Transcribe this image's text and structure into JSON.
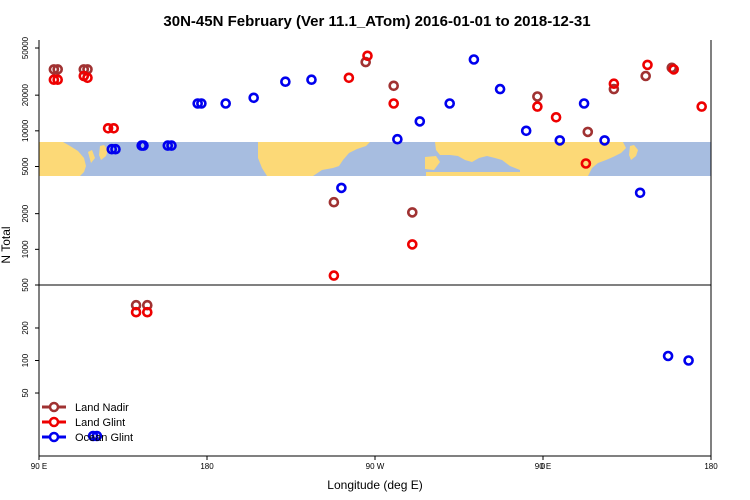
{
  "chart_data": {
    "type": "scatter",
    "title": "30N-45N February (Ver 11.1_ATom)   2016-01-01 to 2018-12-31",
    "xlabel": "Longitude (deg E)",
    "ylabel": "N Total",
    "x_tick_labels": [
      "90 E",
      "180",
      "90 W",
      "0",
      "90 E",
      "180"
    ],
    "y_tick_labels": [
      "50000",
      "20000",
      "10000",
      "5000",
      "2000",
      "1000",
      "500",
      "200",
      "100",
      "50"
    ],
    "x_axis": "longitude, one full wrap starting at 90 E",
    "y_scale": "log",
    "grid": false,
    "legend_position": "bottom-left",
    "colors": {
      "land_nadir": "#a03232",
      "land_glint": "#ee0000",
      "ocean_glint": "#0000ee",
      "map_ocean": "#a7bde0",
      "map_land": "#fcd977"
    },
    "series": [
      {
        "name": "Land Nadir",
        "color": "#a03232",
        "points": [
          {
            "lon": 98,
            "n": 33000
          },
          {
            "lon": 114,
            "n": 33000
          },
          {
            "lon": 142,
            "n": 325
          },
          {
            "lon": -112,
            "n": 2500
          },
          {
            "lon": -95,
            "n": 38000
          },
          {
            "lon": -80,
            "n": 24000
          },
          {
            "lon": -70,
            "n": 2050
          },
          {
            "lon": -3,
            "n": 19500
          },
          {
            "lon": 24,
            "n": 9800
          },
          {
            "lon": 38,
            "n": 22500
          },
          {
            "lon": 55,
            "n": 29000
          },
          {
            "lon": 69,
            "n": 34000
          },
          {
            "lon": 100,
            "n": 33000
          },
          {
            "lon": 116,
            "n": 33000
          },
          {
            "lon": 148,
            "n": 325
          }
        ]
      },
      {
        "name": "Land Glint",
        "color": "#ee0000",
        "points": [
          {
            "lon": 98,
            "n": 27000
          },
          {
            "lon": 114,
            "n": 29000
          },
          {
            "lon": 127,
            "n": 10500
          },
          {
            "lon": 142,
            "n": 280
          },
          {
            "lon": -112,
            "n": 600
          },
          {
            "lon": -104,
            "n": 28000
          },
          {
            "lon": -94,
            "n": 43000
          },
          {
            "lon": -80,
            "n": 17000
          },
          {
            "lon": -70,
            "n": 1100
          },
          {
            "lon": -3,
            "n": 16000
          },
          {
            "lon": 7,
            "n": 13000
          },
          {
            "lon": 23,
            "n": 5300
          },
          {
            "lon": 38,
            "n": 25000
          },
          {
            "lon": 56,
            "n": 36000
          },
          {
            "lon": 70,
            "n": 33000
          },
          {
            "lon": 85,
            "n": 16000
          },
          {
            "lon": 100,
            "n": 27000
          },
          {
            "lon": 116,
            "n": 28000
          },
          {
            "lon": 130,
            "n": 10500
          },
          {
            "lon": 148,
            "n": 280
          }
        ]
      },
      {
        "name": "Ocean Glint",
        "color": "#0000ee",
        "points": [
          {
            "lon": 119,
            "n": 20
          },
          {
            "lon": 129,
            "n": 7000
          },
          {
            "lon": 145,
            "n": 7500
          },
          {
            "lon": 159,
            "n": 7500
          },
          {
            "lon": 175,
            "n": 17000
          },
          {
            "lon": -170,
            "n": 17000
          },
          {
            "lon": -155,
            "n": 19000
          },
          {
            "lon": -138,
            "n": 26000
          },
          {
            "lon": -124,
            "n": 27000
          },
          {
            "lon": -108,
            "n": 3300
          },
          {
            "lon": -78,
            "n": 8500
          },
          {
            "lon": -66,
            "n": 12000
          },
          {
            "lon": -50,
            "n": 17000
          },
          {
            "lon": -37,
            "n": 40000
          },
          {
            "lon": -23,
            "n": 22500
          },
          {
            "lon": -9,
            "n": 10000
          },
          {
            "lon": 9,
            "n": 8300
          },
          {
            "lon": 22,
            "n": 17000
          },
          {
            "lon": 33,
            "n": 8300
          },
          {
            "lon": 52,
            "n": 3000
          },
          {
            "lon": 67,
            "n": 110
          },
          {
            "lon": 78,
            "n": 100
          },
          {
            "lon": 121,
            "n": 20
          },
          {
            "lon": 131,
            "n": 7000
          },
          {
            "lon": 146,
            "n": 7500
          },
          {
            "lon": 161,
            "n": 7500
          },
          {
            "lon": 177,
            "n": 17000
          }
        ]
      }
    ]
  }
}
